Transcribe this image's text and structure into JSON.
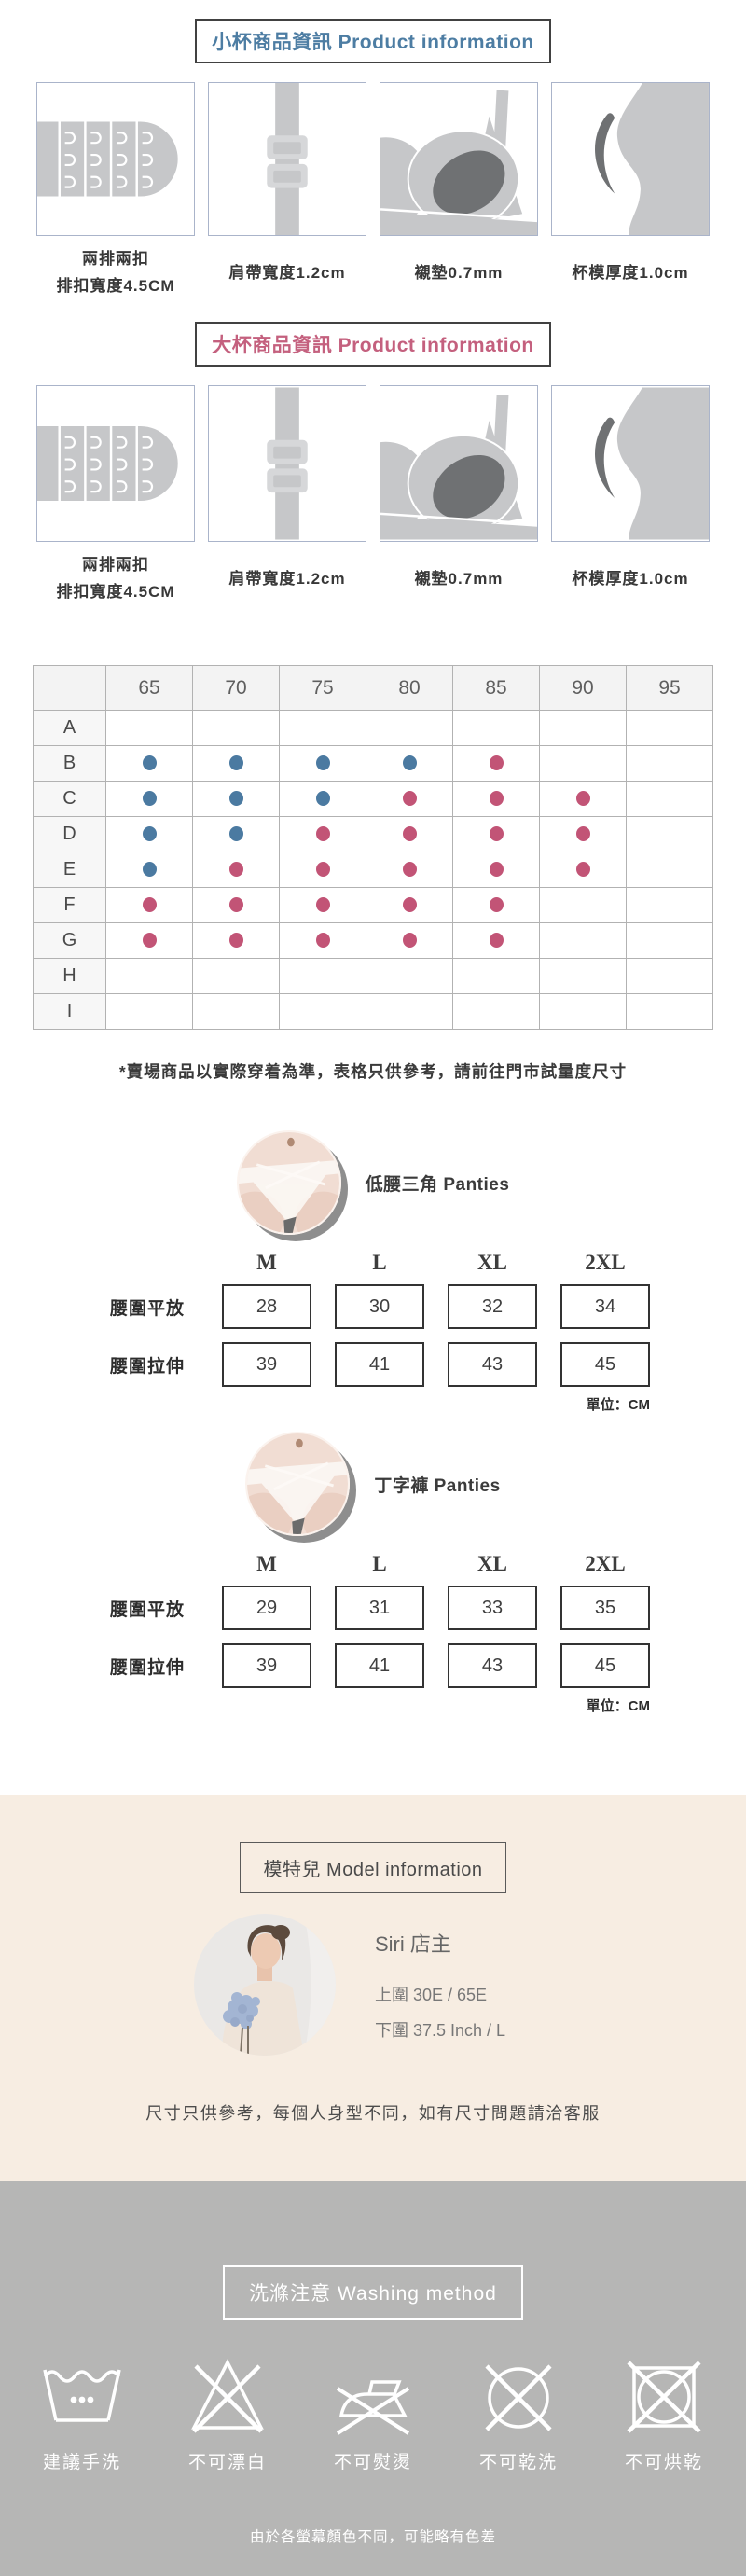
{
  "colors": {
    "small_cup_title": "#4d7da3",
    "big_cup_title": "#c4607e",
    "illustration_gray": "#c6c7c9",
    "illustration_dark": "#6f7173",
    "beige_bg": "#f7ede2",
    "wash_bg": "#b6b6b5",
    "dot_blue": "#4b7aa1",
    "dot_pink": "#c25476"
  },
  "small_cup_section": {
    "title": "小杯商品資訊 Product information"
  },
  "big_cup_section": {
    "title": "大杯商品資訊 Product information"
  },
  "product_features": [
    {
      "icon": "hook-and-eye",
      "line1": "兩排兩扣",
      "line2": "排扣寬度4.5CM"
    },
    {
      "icon": "shoulder-strap",
      "line1": "肩帶寬度1.2cm",
      "line2": ""
    },
    {
      "icon": "bra-pad",
      "line1": "襯墊0.7mm",
      "line2": ""
    },
    {
      "icon": "cup-mold",
      "line1": "杯模厚度1.0cm",
      "line2": ""
    }
  ],
  "size_chart": {
    "type": "table",
    "columns": [
      "65",
      "70",
      "75",
      "80",
      "85",
      "90",
      "95"
    ],
    "rows": [
      {
        "label": "A",
        "dots": {}
      },
      {
        "label": "B",
        "dots": {
          "65": "blue",
          "70": "blue",
          "75": "blue",
          "80": "blue",
          "85": "pink"
        }
      },
      {
        "label": "C",
        "dots": {
          "65": "blue",
          "70": "blue",
          "75": "blue",
          "80": "pink",
          "85": "pink",
          "90": "pink"
        }
      },
      {
        "label": "D",
        "dots": {
          "65": "blue",
          "70": "blue",
          "75": "pink",
          "80": "pink",
          "85": "pink",
          "90": "pink"
        }
      },
      {
        "label": "E",
        "dots": {
          "65": "blue",
          "70": "pink",
          "75": "pink",
          "80": "pink",
          "85": "pink",
          "90": "pink"
        }
      },
      {
        "label": "F",
        "dots": {
          "65": "pink",
          "70": "pink",
          "75": "pink",
          "80": "pink",
          "85": "pink"
        }
      },
      {
        "label": "G",
        "dots": {
          "65": "pink",
          "70": "pink",
          "75": "pink",
          "80": "pink",
          "85": "pink"
        }
      },
      {
        "label": "H",
        "dots": {}
      },
      {
        "label": "I",
        "dots": {}
      }
    ],
    "dot_colors": {
      "blue": "#4b7aa1",
      "pink": "#c25476"
    }
  },
  "size_note": "*賣場商品以實際穿着為準，表格只供參考，請前往門市試量度尺寸",
  "panties": [
    {
      "name": "低腰三角 Panties",
      "columns": [
        "M",
        "L",
        "XL",
        "2XL"
      ],
      "rows": [
        {
          "label": "腰圍平放",
          "values": [
            "28",
            "30",
            "32",
            "34"
          ]
        },
        {
          "label": "腰圍拉伸",
          "values": [
            "39",
            "41",
            "43",
            "45"
          ]
        }
      ],
      "unit": "單位：CM"
    },
    {
      "name": "丁字褲 Panties",
      "columns": [
        "M",
        "L",
        "XL",
        "2XL"
      ],
      "rows": [
        {
          "label": "腰圍平放",
          "values": [
            "29",
            "31",
            "33",
            "35"
          ]
        },
        {
          "label": "腰圍拉伸",
          "values": [
            "39",
            "41",
            "43",
            "45"
          ]
        }
      ],
      "unit": "單位：CM"
    }
  ],
  "model_info": {
    "header": "模特兒 Model information",
    "name": "Siri 店主",
    "bust": "上圍 30E / 65E",
    "under": "下圍 37.5 Inch / L",
    "note": "尺寸只供參考，每個人身型不同，如有尺寸問題請洽客服"
  },
  "washing": {
    "header": "洗滌注意 Washing method",
    "icons": [
      {
        "icon": "hand-wash-icon",
        "label": "建議手洗"
      },
      {
        "icon": "no-bleach-icon",
        "label": "不可漂白"
      },
      {
        "icon": "no-iron-icon",
        "label": "不可熨燙"
      },
      {
        "icon": "no-dry-clean-icon",
        "label": "不可乾洗"
      },
      {
        "icon": "no-tumble-dry-icon",
        "label": "不可烘乾"
      }
    ]
  },
  "footer_note": "由於各螢幕顏色不同，可能略有色差"
}
